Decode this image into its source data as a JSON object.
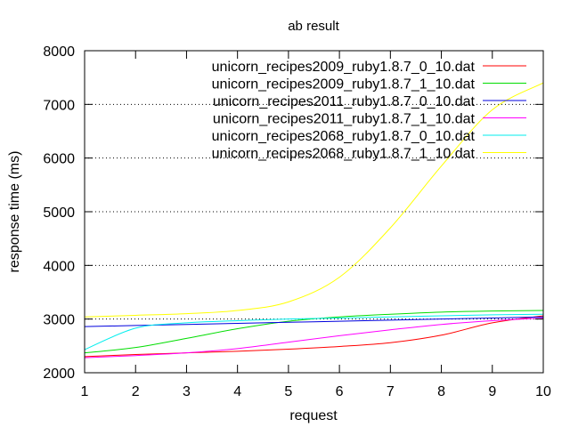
{
  "chart_data": {
    "type": "line",
    "title": "ab result",
    "xlabel": "request",
    "ylabel": "response time (ms)",
    "xlim": [
      1,
      10
    ],
    "ylim": [
      2000,
      8000
    ],
    "x_ticks": [
      "1",
      "2",
      "3",
      "4",
      "5",
      "6",
      "7",
      "8",
      "9",
      "10"
    ],
    "y_ticks": [
      "2000",
      "3000",
      "4000",
      "5000",
      "6000",
      "7000",
      "8000"
    ],
    "grid": "horizontal dotted",
    "legend_position": "top-right",
    "x": [
      1,
      2,
      3,
      4,
      5,
      6,
      7,
      8,
      9,
      10
    ],
    "series": [
      {
        "name": "unicorn_recipes2009_ruby1.8.7_0_10.dat",
        "color": "#ff0000",
        "values": [
          2300,
          2340,
          2370,
          2400,
          2440,
          2490,
          2560,
          2700,
          2930,
          3060
        ]
      },
      {
        "name": "unicorn_recipes2009_ruby1.8.7_1_10.dat",
        "color": "#00dd00",
        "values": [
          2370,
          2470,
          2640,
          2820,
          2960,
          3040,
          3090,
          3130,
          3150,
          3160
        ]
      },
      {
        "name": "unicorn_recipes2011_ruby1.8.7_0_10.dat",
        "color": "#0000dd",
        "values": [
          2860,
          2880,
          2900,
          2920,
          2940,
          2960,
          2980,
          3000,
          3020,
          3040
        ]
      },
      {
        "name": "unicorn_recipes2011_ruby1.8.7_1_10.dat",
        "color": "#ff00ff",
        "values": [
          2280,
          2320,
          2370,
          2450,
          2570,
          2690,
          2800,
          2900,
          2970,
          3020
        ]
      },
      {
        "name": "unicorn_recipes2068_ruby1.8.7_0_10.dat",
        "color": "#00eeee",
        "values": [
          2430,
          2830,
          2930,
          2970,
          3000,
          3020,
          3040,
          3060,
          3080,
          3090
        ]
      },
      {
        "name": "unicorn_recipes2068_ruby1.8.7_1_10.dat",
        "color": "#ffff00",
        "values": [
          3040,
          3070,
          3100,
          3160,
          3320,
          3780,
          4700,
          5850,
          6900,
          7400
        ]
      }
    ]
  }
}
